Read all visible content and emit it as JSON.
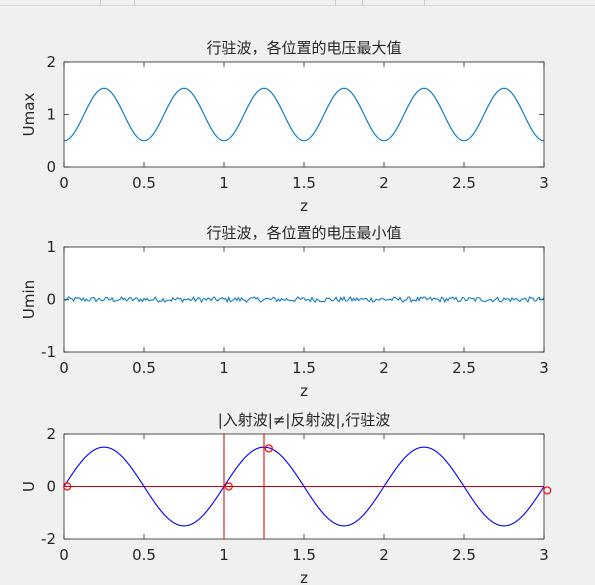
{
  "chart_data": [
    {
      "type": "line",
      "title": "行驻波，各位置的电压最大值",
      "xlabel": "z",
      "ylabel": "Umax",
      "xlim": [
        0,
        3
      ],
      "ylim": [
        0,
        2
      ],
      "xticks": [
        "0",
        "0.5",
        "1",
        "1.5",
        "2",
        "2.5",
        "3"
      ],
      "yticks": [
        "0",
        "1",
        "2"
      ],
      "grid": false,
      "colors": {
        "line": "#0072BD"
      },
      "series": [
        {
          "x": [
            0,
            0.25,
            0.5,
            0.75,
            1,
            1.25,
            1.5,
            1.75,
            2,
            2.25,
            2.5,
            2.75,
            3
          ],
          "y": [
            0.5,
            1.5,
            0.5,
            1.5,
            0.5,
            1.5,
            0.5,
            1.5,
            0.5,
            1.5,
            0.5,
            1.5,
            0.5
          ]
        }
      ]
    },
    {
      "type": "line",
      "title": "行驻波，各位置的电压最小值",
      "xlabel": "z",
      "ylabel": "Umin",
      "xlim": [
        0,
        3
      ],
      "ylim": [
        -1,
        1
      ],
      "xticks": [
        "0",
        "0.5",
        "1",
        "1.5",
        "2",
        "2.5",
        "3"
      ],
      "yticks": [
        "-1",
        "0",
        "1"
      ],
      "grid": false,
      "colors": {
        "line": "#0072BD"
      },
      "series": [
        {
          "x": [
            0,
            3
          ],
          "y": [
            0,
            0
          ],
          "noise_amplitude": 0.05
        }
      ]
    },
    {
      "type": "line",
      "title": "|入射波|≠|反射波|,行驻波",
      "xlabel": "z",
      "ylabel": "U",
      "xlim": [
        0,
        3
      ],
      "ylim": [
        -2,
        2
      ],
      "xticks": [
        "0",
        "0.5",
        "1",
        "1.5",
        "2",
        "2.5",
        "3"
      ],
      "yticks": [
        "-2",
        "0",
        "2"
      ],
      "grid": false,
      "colors": {
        "wave": "#0000FF",
        "marker": "#FF0000",
        "reference": "#CC0000"
      },
      "series": [
        {
          "x": [
            0,
            0.25,
            0.5,
            0.75,
            1,
            1.25,
            1.5,
            1.75,
            2,
            2.25,
            2.5,
            2.75,
            3
          ],
          "y": [
            0,
            1.5,
            0,
            -1.5,
            0,
            1.5,
            0,
            -1.5,
            0,
            1.5,
            0,
            -1.5,
            0
          ]
        }
      ],
      "horizontal_line": 0,
      "vertical_lines": [
        1,
        1.25
      ],
      "markers": [
        {
          "x": 0.02,
          "y": 0
        },
        {
          "x": 1.03,
          "y": 0
        },
        {
          "x": 1.28,
          "y": 1.45
        },
        {
          "x": 3.02,
          "y": -0.15
        }
      ]
    }
  ]
}
